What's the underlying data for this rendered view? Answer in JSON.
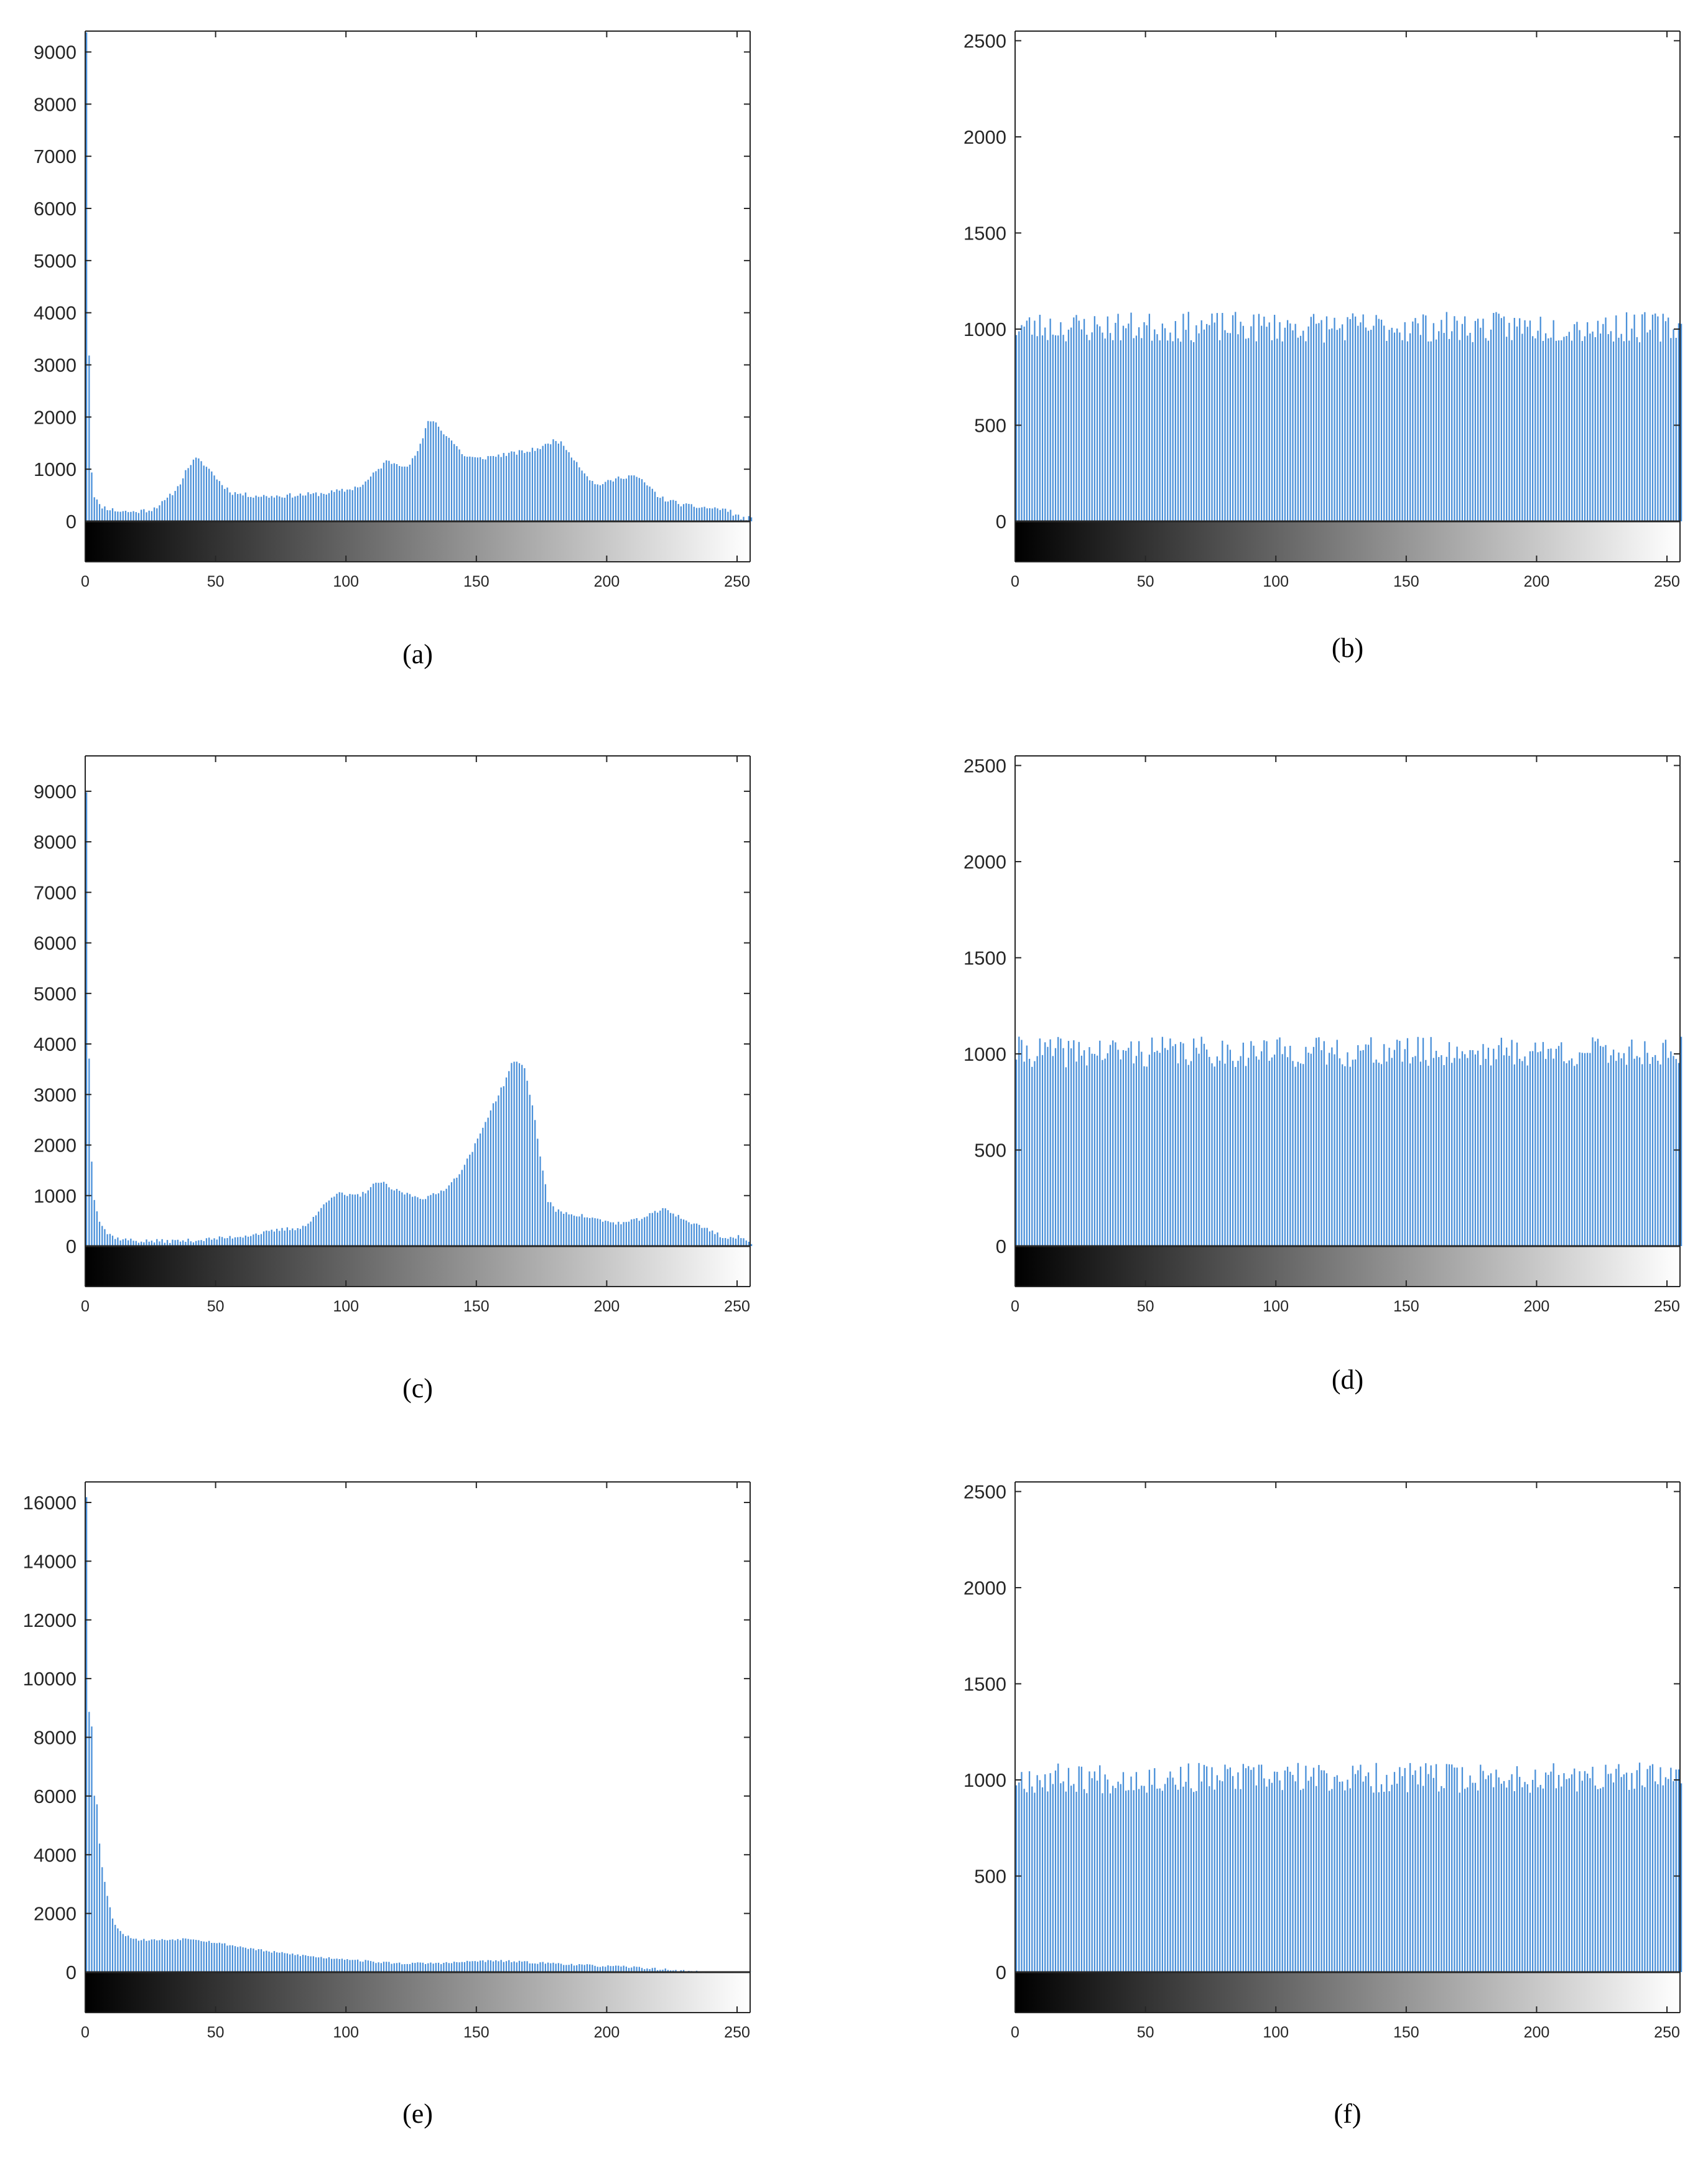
{
  "figure": {
    "bar_color": "#4a90d9",
    "axis_color": "#262626"
  },
  "chart_data": [
    {
      "id": "a",
      "type": "bar",
      "caption": "(a)",
      "xlim": [
        0,
        255
      ],
      "ylim": [
        0,
        9400
      ],
      "xticks": [
        0,
        50,
        100,
        150,
        200,
        250
      ],
      "yticks": [
        0,
        1000,
        2000,
        3000,
        4000,
        5000,
        6000,
        7000,
        8000,
        9000
      ],
      "ytick_labels": [
        "0",
        "1000",
        "2000",
        "3000",
        "4000",
        "5000",
        "6000",
        "7000",
        "8000",
        "9000"
      ],
      "colorbar": "grayscale 0-255",
      "shape": {
        "points": [
          [
            0,
            9400
          ],
          [
            1,
            3200
          ],
          [
            2,
            950
          ],
          [
            3,
            500
          ],
          [
            5,
            300
          ],
          [
            8,
            250
          ],
          [
            12,
            200
          ],
          [
            18,
            180
          ],
          [
            25,
            230
          ],
          [
            30,
            380
          ],
          [
            35,
            650
          ],
          [
            39,
            1050
          ],
          [
            42,
            1200
          ],
          [
            45,
            1100
          ],
          [
            48,
            950
          ],
          [
            52,
            700
          ],
          [
            56,
            550
          ],
          [
            62,
            500
          ],
          [
            70,
            480
          ],
          [
            80,
            500
          ],
          [
            90,
            530
          ],
          [
            100,
            600
          ],
          [
            106,
            700
          ],
          [
            110,
            900
          ],
          [
            115,
            1150
          ],
          [
            120,
            1100
          ],
          [
            124,
            1080
          ],
          [
            128,
            1450
          ],
          [
            131,
            1900
          ],
          [
            133,
            1950
          ],
          [
            136,
            1750
          ],
          [
            140,
            1550
          ],
          [
            145,
            1250
          ],
          [
            150,
            1200
          ],
          [
            160,
            1280
          ],
          [
            170,
            1350
          ],
          [
            176,
            1450
          ],
          [
            180,
            1580
          ],
          [
            184,
            1400
          ],
          [
            190,
            1000
          ],
          [
            195,
            700
          ],
          [
            200,
            750
          ],
          [
            205,
            850
          ],
          [
            210,
            880
          ],
          [
            215,
            700
          ],
          [
            220,
            450
          ],
          [
            230,
            300
          ],
          [
            240,
            250
          ],
          [
            245,
            230
          ],
          [
            250,
            100
          ],
          [
            251,
            60
          ]
        ],
        "noise": 45,
        "seed": 11
      }
    },
    {
      "id": "b",
      "type": "bar",
      "caption": "(b)",
      "xlim": [
        0,
        255
      ],
      "ylim": [
        0,
        2550
      ],
      "xticks": [
        0,
        50,
        100,
        150,
        200,
        250
      ],
      "yticks": [
        0,
        500,
        1000,
        1500,
        2000,
        2500
      ],
      "ytick_labels": [
        "0",
        "500",
        "1000",
        "1500",
        "2000",
        "2500"
      ],
      "colorbar": "grayscale 0-255",
      "shape": {
        "points": [
          [
            0,
            1010
          ],
          [
            255,
            1010
          ]
        ],
        "noise": 80,
        "seed": 23
      }
    },
    {
      "id": "c",
      "type": "bar",
      "caption": "(c)",
      "xlim": [
        0,
        255
      ],
      "ylim": [
        0,
        9700
      ],
      "xticks": [
        0,
        50,
        100,
        150,
        200,
        250
      ],
      "yticks": [
        0,
        1000,
        2000,
        3000,
        4000,
        5000,
        6000,
        7000,
        8000,
        9000
      ],
      "ytick_labels": [
        "0",
        "1000",
        "2000",
        "3000",
        "4000",
        "5000",
        "6000",
        "7000",
        "8000",
        "9000"
      ],
      "colorbar": "grayscale 0-255",
      "shape": {
        "points": [
          [
            0,
            9000
          ],
          [
            1,
            3700
          ],
          [
            2,
            1700
          ],
          [
            3,
            950
          ],
          [
            5,
            500
          ],
          [
            8,
            250
          ],
          [
            12,
            150
          ],
          [
            20,
            100
          ],
          [
            30,
            100
          ],
          [
            40,
            110
          ],
          [
            50,
            150
          ],
          [
            60,
            200
          ],
          [
            70,
            280
          ],
          [
            75,
            330
          ],
          [
            80,
            350
          ],
          [
            84,
            400
          ],
          [
            88,
            600
          ],
          [
            92,
            900
          ],
          [
            96,
            1050
          ],
          [
            100,
            1000
          ],
          [
            105,
            1000
          ],
          [
            110,
            1200
          ],
          [
            113,
            1280
          ],
          [
            116,
            1150
          ],
          [
            120,
            1080
          ],
          [
            125,
            1000
          ],
          [
            130,
            950
          ],
          [
            135,
            1050
          ],
          [
            140,
            1250
          ],
          [
            145,
            1600
          ],
          [
            150,
            2100
          ],
          [
            155,
            2700
          ],
          [
            160,
            3200
          ],
          [
            163,
            3600
          ],
          [
            166,
            3650
          ],
          [
            168,
            3500
          ],
          [
            171,
            2800
          ],
          [
            174,
            1800
          ],
          [
            177,
            900
          ],
          [
            180,
            700
          ],
          [
            190,
            600
          ],
          [
            200,
            480
          ],
          [
            205,
            450
          ],
          [
            210,
            500
          ],
          [
            215,
            600
          ],
          [
            220,
            700
          ],
          [
            222,
            750
          ],
          [
            225,
            650
          ],
          [
            230,
            500
          ],
          [
            240,
            300
          ],
          [
            245,
            150
          ],
          [
            250,
            180
          ],
          [
            254,
            80
          ]
        ],
        "noise": 40,
        "seed": 37
      }
    },
    {
      "id": "d",
      "type": "bar",
      "caption": "(d)",
      "xlim": [
        0,
        255
      ],
      "ylim": [
        0,
        2550
      ],
      "xticks": [
        0,
        50,
        100,
        150,
        200,
        250
      ],
      "yticks": [
        0,
        500,
        1000,
        1500,
        2000,
        2500
      ],
      "ytick_labels": [
        "0",
        "500",
        "1000",
        "1500",
        "2000",
        "2500"
      ],
      "colorbar": "grayscale 0-255",
      "shape": {
        "points": [
          [
            0,
            1010
          ],
          [
            255,
            1010
          ]
        ],
        "noise": 80,
        "seed": 41
      }
    },
    {
      "id": "e",
      "type": "bar",
      "caption": "(e)",
      "xlim": [
        0,
        255
      ],
      "ylim": [
        0,
        16700
      ],
      "xticks": [
        0,
        50,
        100,
        150,
        200,
        250
      ],
      "yticks": [
        0,
        2000,
        4000,
        6000,
        8000,
        10000,
        12000,
        14000,
        16000
      ],
      "ytick_labels": [
        "0",
        "2000",
        "4000",
        "6000",
        "8000",
        "10000",
        "12000",
        "14000",
        "16000"
      ],
      "colorbar": "grayscale 0-255",
      "shape": {
        "points": [
          [
            0,
            16200
          ],
          [
            1,
            8900
          ],
          [
            2,
            8400
          ],
          [
            3,
            6000
          ],
          [
            4,
            5700
          ],
          [
            5,
            4400
          ],
          [
            6,
            3600
          ],
          [
            8,
            2600
          ],
          [
            10,
            1800
          ],
          [
            12,
            1500
          ],
          [
            15,
            1250
          ],
          [
            20,
            1100
          ],
          [
            30,
            1100
          ],
          [
            40,
            1150
          ],
          [
            50,
            1000
          ],
          [
            60,
            850
          ],
          [
            70,
            700
          ],
          [
            80,
            600
          ],
          [
            90,
            500
          ],
          [
            100,
            450
          ],
          [
            110,
            350
          ],
          [
            120,
            300
          ],
          [
            130,
            300
          ],
          [
            140,
            320
          ],
          [
            150,
            380
          ],
          [
            160,
            380
          ],
          [
            170,
            330
          ],
          [
            180,
            300
          ],
          [
            190,
            240
          ],
          [
            200,
            200
          ],
          [
            210,
            170
          ],
          [
            220,
            100
          ],
          [
            225,
            70
          ],
          [
            230,
            30
          ],
          [
            240,
            10
          ],
          [
            255,
            5
          ]
        ],
        "noise": 40,
        "seed": 53
      }
    },
    {
      "id": "f",
      "type": "bar",
      "caption": "(f)",
      "xlim": [
        0,
        255
      ],
      "ylim": [
        0,
        2550
      ],
      "xticks": [
        0,
        50,
        100,
        150,
        200,
        250
      ],
      "yticks": [
        0,
        500,
        1000,
        1500,
        2000,
        2500
      ],
      "ytick_labels": [
        "0",
        "500",
        "1000",
        "1500",
        "2000",
        "2500"
      ],
      "colorbar": "grayscale 0-255",
      "shape": {
        "points": [
          [
            0,
            1010
          ],
          [
            255,
            1010
          ]
        ],
        "noise": 80,
        "seed": 67
      }
    }
  ]
}
